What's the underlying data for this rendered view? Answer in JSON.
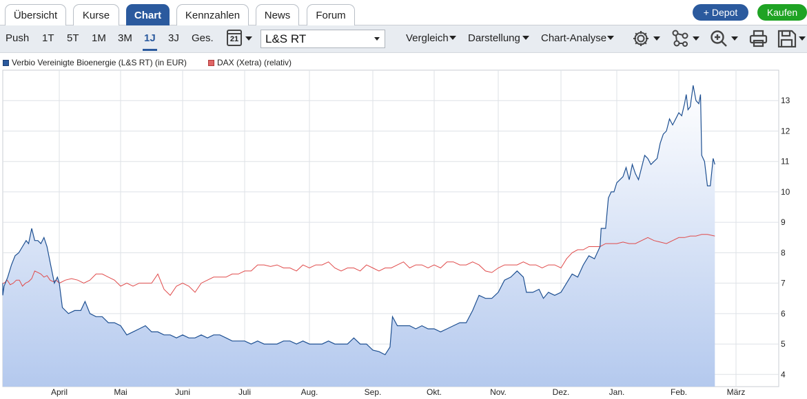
{
  "tabs": [
    {
      "label": "Übersicht",
      "active": false
    },
    {
      "label": "Kurse",
      "active": false
    },
    {
      "label": "Chart",
      "active": true
    },
    {
      "label": "Kennzahlen",
      "active": false
    },
    {
      "label": "News",
      "active": false
    },
    {
      "label": "Forum",
      "active": false
    }
  ],
  "actions": {
    "depot": "+ Depot",
    "buy": "Kaufen"
  },
  "toolbar": {
    "ranges": [
      "Push",
      "1T",
      "5T",
      "1M",
      "3M",
      "1J",
      "3J",
      "Ges."
    ],
    "active_range": "1J",
    "calendar_day": "21",
    "exchange": "L&S RT",
    "compare": "Vergleich",
    "display": "Darstellung",
    "analysis": "Chart-Analyse"
  },
  "legend": {
    "series1": "Verbio Vereinigte Bioenergie (L&S RT) (in EUR)",
    "series2": "DAX (Xetra) (relativ)"
  },
  "colors": {
    "accent": "#2b5a9e",
    "buy": "#1fa324",
    "series1": "#1d4f91",
    "series2": "#e04a4a"
  },
  "chart_data": {
    "type": "area",
    "y_axis_side": "right",
    "ylim": [
      3.6,
      14.0
    ],
    "y_ticks": [
      4,
      5,
      6,
      7,
      8,
      9,
      10,
      11,
      12,
      13
    ],
    "x_ticks": [
      "April",
      "Mai",
      "Juni",
      "Juli",
      "Aug.",
      "Sep.",
      "Okt.",
      "Nov.",
      "Dez.",
      "Jan.",
      "Feb.",
      "März"
    ],
    "grid": true,
    "series": [
      {
        "name": "Verbio Vereinigte Bioenergie (L&S RT) (in EUR)",
        "style": "area",
        "points": [
          [
            0.0,
            6.9
          ],
          [
            0.02,
            7.0
          ],
          [
            0.05,
            6.6
          ],
          [
            0.1,
            6.9
          ],
          [
            0.16,
            7.2
          ],
          [
            0.22,
            7.6
          ],
          [
            0.28,
            7.9
          ],
          [
            0.34,
            8.0
          ],
          [
            0.4,
            8.2
          ],
          [
            0.46,
            8.4
          ],
          [
            0.5,
            8.3
          ],
          [
            0.55,
            8.8
          ],
          [
            0.6,
            8.4
          ],
          [
            0.65,
            8.4
          ],
          [
            0.7,
            8.3
          ],
          [
            0.75,
            8.5
          ],
          [
            0.8,
            8.2
          ],
          [
            0.86,
            7.6
          ],
          [
            0.92,
            7.0
          ],
          [
            0.97,
            7.2
          ],
          [
            1.0,
            7.0
          ],
          [
            1.05,
            6.2
          ],
          [
            1.15,
            6.0
          ],
          [
            1.25,
            6.1
          ],
          [
            1.35,
            6.1
          ],
          [
            1.42,
            6.4
          ],
          [
            1.5,
            6.0
          ],
          [
            1.6,
            5.9
          ],
          [
            1.7,
            5.9
          ],
          [
            1.8,
            5.7
          ],
          [
            1.9,
            5.7
          ],
          [
            2.0,
            5.6
          ],
          [
            2.1,
            5.3
          ],
          [
            2.2,
            5.4
          ],
          [
            2.3,
            5.5
          ],
          [
            2.4,
            5.6
          ],
          [
            2.5,
            5.4
          ],
          [
            2.6,
            5.4
          ],
          [
            2.7,
            5.3
          ],
          [
            2.8,
            5.3
          ],
          [
            2.9,
            5.2
          ],
          [
            3.0,
            5.3
          ],
          [
            3.1,
            5.2
          ],
          [
            3.2,
            5.2
          ],
          [
            3.3,
            5.3
          ],
          [
            3.4,
            5.2
          ],
          [
            3.5,
            5.3
          ],
          [
            3.6,
            5.3
          ],
          [
            3.7,
            5.2
          ],
          [
            3.8,
            5.1
          ],
          [
            3.9,
            5.1
          ],
          [
            4.0,
            5.1
          ],
          [
            4.1,
            5.0
          ],
          [
            4.2,
            5.1
          ],
          [
            4.3,
            5.0
          ],
          [
            4.4,
            5.0
          ],
          [
            4.5,
            5.0
          ],
          [
            4.6,
            5.1
          ],
          [
            4.7,
            5.1
          ],
          [
            4.8,
            5.0
          ],
          [
            4.9,
            5.1
          ],
          [
            5.0,
            5.0
          ],
          [
            5.1,
            5.0
          ],
          [
            5.2,
            5.0
          ],
          [
            5.3,
            5.1
          ],
          [
            5.4,
            5.0
          ],
          [
            5.5,
            5.0
          ],
          [
            5.6,
            5.0
          ],
          [
            5.7,
            5.2
          ],
          [
            5.8,
            5.0
          ],
          [
            5.9,
            5.0
          ],
          [
            6.0,
            4.8
          ],
          [
            6.1,
            4.75
          ],
          [
            6.2,
            4.65
          ],
          [
            6.28,
            4.9
          ],
          [
            6.32,
            5.9
          ],
          [
            6.4,
            5.6
          ],
          [
            6.5,
            5.6
          ],
          [
            6.6,
            5.6
          ],
          [
            6.7,
            5.5
          ],
          [
            6.8,
            5.6
          ],
          [
            6.9,
            5.5
          ],
          [
            7.0,
            5.5
          ],
          [
            7.1,
            5.4
          ],
          [
            7.2,
            5.5
          ],
          [
            7.3,
            5.6
          ],
          [
            7.4,
            5.7
          ],
          [
            7.5,
            5.7
          ],
          [
            7.6,
            6.1
          ],
          [
            7.7,
            6.6
          ],
          [
            7.8,
            6.5
          ],
          [
            7.9,
            6.5
          ],
          [
            8.0,
            6.7
          ],
          [
            8.1,
            7.1
          ],
          [
            8.2,
            7.2
          ],
          [
            8.3,
            7.4
          ],
          [
            8.4,
            7.2
          ],
          [
            8.45,
            6.7
          ],
          [
            8.55,
            6.7
          ],
          [
            8.65,
            6.8
          ],
          [
            8.72,
            6.5
          ],
          [
            8.8,
            6.7
          ],
          [
            8.9,
            6.6
          ],
          [
            9.0,
            6.7
          ],
          [
            9.1,
            7.0
          ],
          [
            9.2,
            7.3
          ],
          [
            9.3,
            7.2
          ],
          [
            9.4,
            7.6
          ],
          [
            9.5,
            7.9
          ],
          [
            9.6,
            7.8
          ],
          [
            9.7,
            8.2
          ],
          [
            9.72,
            8.8
          ],
          [
            9.8,
            8.8
          ],
          [
            9.85,
            9.8
          ],
          [
            9.9,
            10.0
          ],
          [
            9.95,
            10.0
          ],
          [
            10.0,
            10.3
          ],
          [
            10.1,
            10.5
          ],
          [
            10.15,
            10.8
          ],
          [
            10.2,
            10.4
          ],
          [
            10.25,
            10.9
          ],
          [
            10.3,
            10.6
          ],
          [
            10.35,
            10.4
          ],
          [
            10.4,
            10.8
          ],
          [
            10.45,
            11.2
          ],
          [
            10.5,
            11.1
          ],
          [
            10.55,
            10.9
          ],
          [
            10.6,
            11.0
          ],
          [
            10.65,
            11.1
          ],
          [
            10.7,
            11.6
          ],
          [
            10.75,
            11.9
          ],
          [
            10.8,
            12.0
          ],
          [
            10.85,
            12.4
          ],
          [
            10.9,
            12.2
          ],
          [
            10.95,
            12.4
          ],
          [
            11.0,
            12.6
          ],
          [
            11.05,
            12.5
          ],
          [
            11.1,
            12.9
          ],
          [
            11.13,
            13.2
          ],
          [
            11.16,
            12.7
          ],
          [
            11.2,
            12.8
          ],
          [
            11.25,
            13.5
          ],
          [
            11.3,
            13.0
          ],
          [
            11.35,
            12.9
          ],
          [
            11.38,
            13.2
          ],
          [
            11.4,
            11.2
          ],
          [
            11.45,
            11.0
          ],
          [
            11.5,
            10.2
          ],
          [
            11.55,
            10.2
          ],
          [
            11.6,
            11.1
          ],
          [
            11.63,
            10.9
          ]
        ]
      },
      {
        "name": "DAX (Xetra) (relativ)",
        "style": "line",
        "points": [
          [
            0.0,
            6.9
          ],
          [
            0.05,
            7.0
          ],
          [
            0.1,
            7.0
          ],
          [
            0.15,
            7.1
          ],
          [
            0.2,
            6.95
          ],
          [
            0.25,
            7.0
          ],
          [
            0.3,
            7.1
          ],
          [
            0.35,
            7.1
          ],
          [
            0.4,
            6.9
          ],
          [
            0.45,
            7.0
          ],
          [
            0.5,
            7.05
          ],
          [
            0.55,
            7.15
          ],
          [
            0.6,
            7.4
          ],
          [
            0.65,
            7.35
          ],
          [
            0.7,
            7.3
          ],
          [
            0.75,
            7.2
          ],
          [
            0.8,
            7.25
          ],
          [
            0.85,
            7.1
          ],
          [
            0.9,
            7.05
          ],
          [
            0.95,
            7.1
          ],
          [
            1.0,
            7.0
          ],
          [
            1.1,
            7.1
          ],
          [
            1.2,
            7.15
          ],
          [
            1.3,
            7.1
          ],
          [
            1.4,
            7.0
          ],
          [
            1.5,
            7.1
          ],
          [
            1.6,
            7.3
          ],
          [
            1.7,
            7.3
          ],
          [
            1.8,
            7.2
          ],
          [
            1.9,
            7.1
          ],
          [
            2.0,
            6.9
          ],
          [
            2.1,
            7.0
          ],
          [
            2.2,
            6.9
          ],
          [
            2.3,
            7.0
          ],
          [
            2.4,
            7.0
          ],
          [
            2.5,
            7.0
          ],
          [
            2.6,
            7.3
          ],
          [
            2.7,
            6.8
          ],
          [
            2.8,
            6.6
          ],
          [
            2.9,
            6.9
          ],
          [
            3.0,
            7.0
          ],
          [
            3.1,
            6.9
          ],
          [
            3.2,
            6.7
          ],
          [
            3.3,
            7.0
          ],
          [
            3.4,
            7.1
          ],
          [
            3.5,
            7.2
          ],
          [
            3.6,
            7.2
          ],
          [
            3.7,
            7.2
          ],
          [
            3.8,
            7.3
          ],
          [
            3.9,
            7.3
          ],
          [
            4.0,
            7.4
          ],
          [
            4.1,
            7.4
          ],
          [
            4.2,
            7.6
          ],
          [
            4.3,
            7.6
          ],
          [
            4.4,
            7.55
          ],
          [
            4.5,
            7.6
          ],
          [
            4.6,
            7.5
          ],
          [
            4.7,
            7.5
          ],
          [
            4.8,
            7.4
          ],
          [
            4.9,
            7.6
          ],
          [
            5.0,
            7.5
          ],
          [
            5.1,
            7.6
          ],
          [
            5.2,
            7.6
          ],
          [
            5.3,
            7.7
          ],
          [
            5.4,
            7.5
          ],
          [
            5.5,
            7.4
          ],
          [
            5.6,
            7.5
          ],
          [
            5.7,
            7.5
          ],
          [
            5.8,
            7.4
          ],
          [
            5.9,
            7.6
          ],
          [
            6.0,
            7.5
          ],
          [
            6.1,
            7.4
          ],
          [
            6.2,
            7.5
          ],
          [
            6.3,
            7.5
          ],
          [
            6.4,
            7.6
          ],
          [
            6.5,
            7.7
          ],
          [
            6.6,
            7.5
          ],
          [
            6.7,
            7.6
          ],
          [
            6.8,
            7.6
          ],
          [
            6.9,
            7.5
          ],
          [
            7.0,
            7.6
          ],
          [
            7.1,
            7.5
          ],
          [
            7.2,
            7.7
          ],
          [
            7.3,
            7.7
          ],
          [
            7.4,
            7.6
          ],
          [
            7.5,
            7.6
          ],
          [
            7.6,
            7.7
          ],
          [
            7.7,
            7.6
          ],
          [
            7.8,
            7.4
          ],
          [
            7.9,
            7.35
          ],
          [
            8.0,
            7.5
          ],
          [
            8.1,
            7.6
          ],
          [
            8.2,
            7.6
          ],
          [
            8.3,
            7.6
          ],
          [
            8.4,
            7.7
          ],
          [
            8.5,
            7.6
          ],
          [
            8.6,
            7.6
          ],
          [
            8.7,
            7.5
          ],
          [
            8.8,
            7.6
          ],
          [
            8.9,
            7.6
          ],
          [
            9.0,
            7.5
          ],
          [
            9.1,
            7.8
          ],
          [
            9.2,
            8.0
          ],
          [
            9.3,
            8.1
          ],
          [
            9.4,
            8.1
          ],
          [
            9.5,
            8.2
          ],
          [
            9.6,
            8.2
          ],
          [
            9.7,
            8.2
          ],
          [
            9.8,
            8.3
          ],
          [
            9.9,
            8.3
          ],
          [
            10.0,
            8.3
          ],
          [
            10.1,
            8.35
          ],
          [
            10.2,
            8.3
          ],
          [
            10.3,
            8.3
          ],
          [
            10.4,
            8.4
          ],
          [
            10.5,
            8.5
          ],
          [
            10.6,
            8.4
          ],
          [
            10.7,
            8.35
          ],
          [
            10.8,
            8.3
          ],
          [
            10.9,
            8.4
          ],
          [
            11.0,
            8.5
          ],
          [
            11.1,
            8.5
          ],
          [
            11.2,
            8.55
          ],
          [
            11.3,
            8.55
          ],
          [
            11.4,
            8.6
          ],
          [
            11.5,
            8.6
          ],
          [
            11.63,
            8.55
          ]
        ]
      }
    ]
  }
}
